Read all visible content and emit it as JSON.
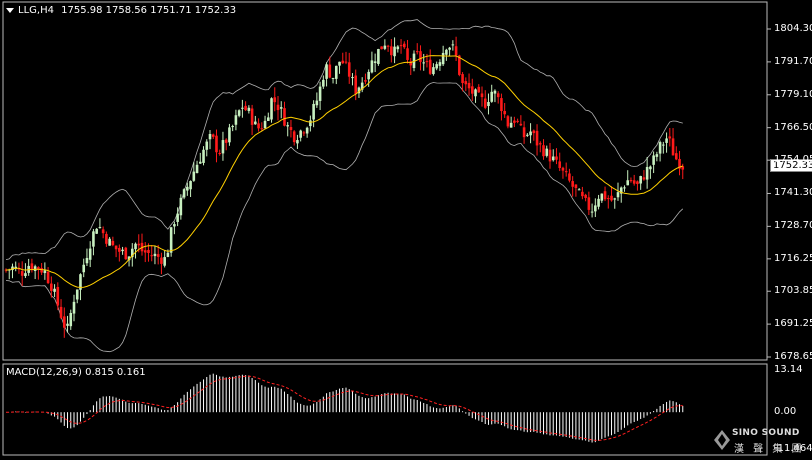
{
  "header": {
    "symbol": "LLG,H4",
    "ohlc": "1755.98 1758.56 1751.71 1752.33"
  },
  "current_price": "1752.33",
  "macd_header": "MACD(12,26,9) 0.815 0.161",
  "logo": {
    "line1": "SINO SOUND",
    "line2": "漢 聲 集 團"
  },
  "colors": {
    "background": "#000000",
    "bull_candle": "#c8f0c0",
    "bear_candle": "#ff1a1a",
    "ma_line": "#ffd000",
    "bands": "#b0b0b0",
    "macd_hist": "#ffffff",
    "macd_signal": "#ff2020"
  },
  "chart_data": [
    {
      "type": "candlestick",
      "title": "LLG,H4",
      "indicators": [
        "Bollinger Bands",
        "Moving Average"
      ],
      "y_ticks": [
        "1804.30",
        "1791.70",
        "1779.10",
        "1766.50",
        "1754.05",
        "1741.30",
        "1728.70",
        "1716.25",
        "1703.85",
        "1691.25",
        "1678.65"
      ],
      "ylim": [
        1678.65,
        1804.3
      ],
      "approx_close_path": [
        1712,
        1713,
        1711,
        1714,
        1713,
        1712,
        1706,
        1697,
        1688,
        1702,
        1712,
        1722,
        1730,
        1725,
        1721,
        1719,
        1718,
        1722,
        1719,
        1718,
        1717,
        1716,
        1730,
        1738,
        1745,
        1752,
        1758,
        1763,
        1757,
        1762,
        1768,
        1775,
        1772,
        1766,
        1768,
        1778,
        1774,
        1767,
        1763,
        1766,
        1770,
        1778,
        1790,
        1786,
        1793,
        1788,
        1781,
        1785,
        1791,
        1796,
        1800,
        1795,
        1798,
        1790,
        1794,
        1791,
        1789,
        1793,
        1799,
        1796,
        1783,
        1781,
        1778,
        1776,
        1781,
        1776,
        1768,
        1770,
        1763,
        1765,
        1760,
        1757,
        1754,
        1750,
        1746,
        1742,
        1738,
        1735,
        1741,
        1740,
        1738,
        1744,
        1747,
        1744,
        1749,
        1753,
        1759,
        1763,
        1755,
        1752
      ]
    },
    {
      "type": "bar",
      "title": "MACD(12,26,9) 0.815 0.161",
      "y_ticks": [
        "13.14",
        "0.00",
        "-11.464"
      ],
      "ylim": [
        -11.464,
        13.14
      ]
    }
  ]
}
